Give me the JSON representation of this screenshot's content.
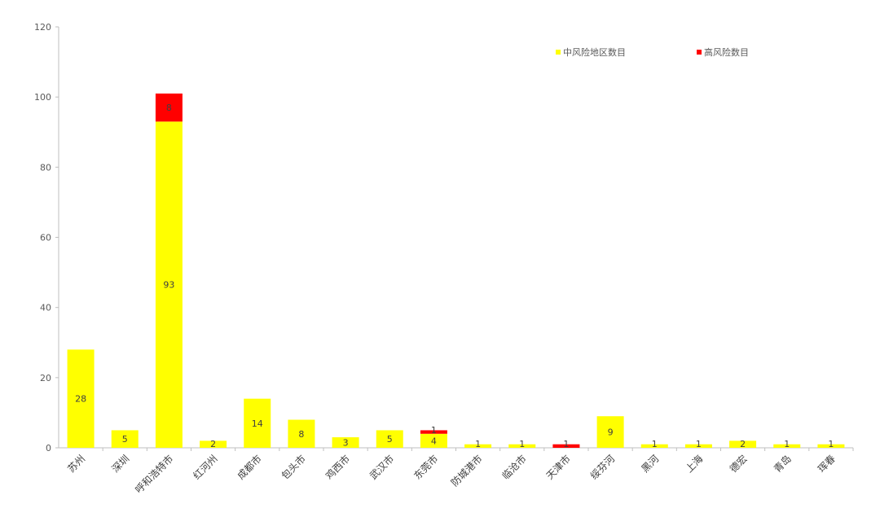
{
  "chart_data": {
    "type": "bar",
    "stacked": true,
    "title": "",
    "xlabel": "",
    "ylabel": "",
    "ylim": [
      0,
      120
    ],
    "y_ticks": [
      0,
      20,
      40,
      60,
      80,
      100,
      120
    ],
    "grid": false,
    "legend_position": "top-right",
    "categories": [
      "苏州",
      "深圳",
      "呼和浩特市",
      "红河州",
      "成都市",
      "包头市",
      "鸡西市",
      "武汉市",
      "东莞市",
      "防城港市",
      "临沧市",
      "天津市",
      "绥芬河",
      "黑河",
      "上海",
      "德宏",
      "青岛",
      "珲春"
    ],
    "series": [
      {
        "name": "中风险地区数目",
        "color": "#FFFF00",
        "values": [
          28,
          5,
          93,
          2,
          14,
          8,
          3,
          5,
          4,
          1,
          1,
          0,
          9,
          1,
          1,
          2,
          1,
          1
        ],
        "labels": [
          "28",
          "5",
          "93",
          "2",
          "14",
          "8",
          "3",
          "5",
          "4",
          "1",
          "1",
          "",
          "9",
          "1",
          "1",
          "2",
          "1",
          "1"
        ]
      },
      {
        "name": "高风险数目",
        "color": "#FF0000",
        "values": [
          0,
          0,
          8,
          0,
          0,
          0,
          0,
          0,
          1,
          0,
          0,
          1,
          0,
          0,
          0,
          0,
          0,
          0
        ],
        "labels": [
          "",
          "",
          "8",
          "",
          "",
          "",
          "",
          "",
          "1",
          "",
          "",
          "1",
          "",
          "",
          "",
          "",
          "",
          ""
        ]
      }
    ]
  }
}
